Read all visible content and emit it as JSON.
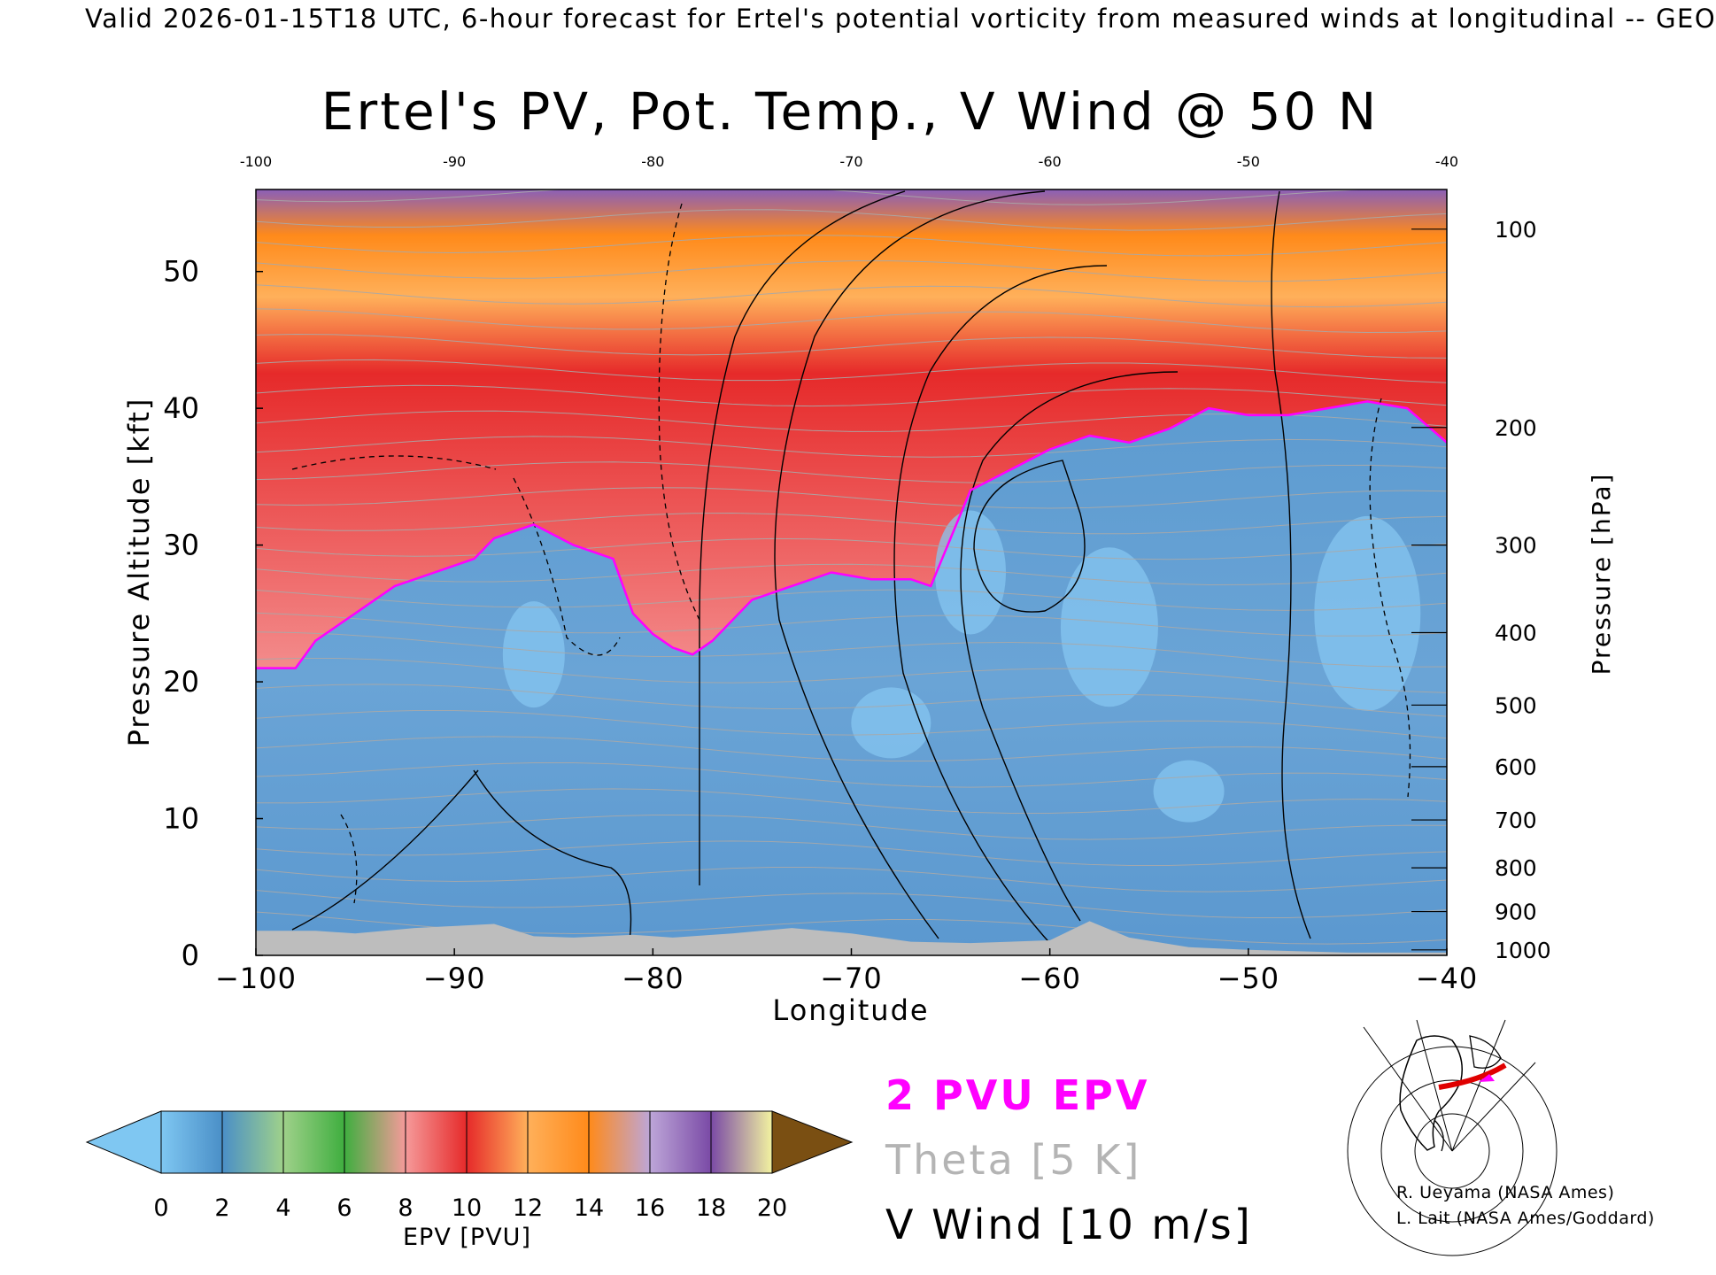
{
  "header": {
    "valid_line": "Valid 2026-01-15T18 UTC, 6-hour forecast for Ertel's potential vorticity from measured winds at longitudinal -- GEO"
  },
  "chart_data": {
    "type": "heatmap",
    "title": "Ertel's PV, Pot. Temp., V Wind @ 50 N",
    "xlabel": "Longitude",
    "ylabel_left": "Pressure Altitude [kft]",
    "ylabel_right": "Pressure [hPa]",
    "xlim": [
      -100,
      -40
    ],
    "ylim": [
      0,
      56
    ],
    "x_ticks": [
      -100,
      -90,
      -80,
      -70,
      -60,
      -50,
      -40
    ],
    "x_tick_labels": [
      "−100",
      "−90",
      "−80",
      "−70",
      "−60",
      "−50",
      "−40"
    ],
    "top_x_tick_labels": [
      "-100",
      "-90",
      "-80",
      "-70",
      "-60",
      "-50",
      "-40"
    ],
    "y_ticks_left": [
      0,
      10,
      20,
      30,
      40,
      50
    ],
    "y_ticks_right": [
      {
        "label": "100",
        "kft": 53.1
      },
      {
        "label": "200",
        "kft": 38.6
      },
      {
        "label": "300",
        "kft": 30.0
      },
      {
        "label": "400",
        "kft": 23.6
      },
      {
        "label": "500",
        "kft": 18.3
      },
      {
        "label": "600",
        "kft": 13.8
      },
      {
        "label": "700",
        "kft": 9.9
      },
      {
        "label": "800",
        "kft": 6.4
      },
      {
        "label": "900",
        "kft": 3.2
      },
      {
        "label": "1000",
        "kft": 0.4
      }
    ],
    "tropopause_kft": [
      [
        -100,
        21
      ],
      [
        -98,
        21
      ],
      [
        -97,
        23
      ],
      [
        -95,
        25
      ],
      [
        -93,
        27
      ],
      [
        -91,
        28
      ],
      [
        -89,
        29
      ],
      [
        -88,
        30.5
      ],
      [
        -86,
        31.5
      ],
      [
        -84,
        30
      ],
      [
        -82,
        29
      ],
      [
        -81,
        25
      ],
      [
        -80,
        23.5
      ],
      [
        -79,
        22.5
      ],
      [
        -78,
        22
      ],
      [
        -77,
        23
      ],
      [
        -75,
        26
      ],
      [
        -73,
        27
      ],
      [
        -71,
        28
      ],
      [
        -69,
        27.5
      ],
      [
        -67,
        27.5
      ],
      [
        -66,
        27
      ],
      [
        -65,
        30.5
      ],
      [
        -64,
        34
      ],
      [
        -62,
        35.5
      ],
      [
        -60,
        37
      ],
      [
        -58,
        38
      ],
      [
        -56,
        37.5
      ],
      [
        -54,
        38.5
      ],
      [
        -52,
        40
      ],
      [
        -50,
        39.5
      ],
      [
        -48,
        39.5
      ],
      [
        -46,
        40
      ],
      [
        -44,
        40.5
      ],
      [
        -42,
        40
      ],
      [
        -40,
        37.5
      ]
    ],
    "colorbar": {
      "label": "EPV [PVU]",
      "ticks": [
        "0",
        "2",
        "4",
        "6",
        "8",
        "10",
        "12",
        "14",
        "16",
        "18",
        "20"
      ],
      "colors": [
        "#7fc7f2",
        "#4a8fc7",
        "#9fd18a",
        "#3fae3f",
        "#f59a9a",
        "#e62a2a",
        "#ffb05a",
        "#ff8a1a",
        "#bda6d8",
        "#7a4aa6",
        "#f2f2a0",
        "#7a4f12"
      ]
    },
    "legend": {
      "pv": "2 PVU EPV",
      "theta": "Theta [5 K]",
      "vwind": "V Wind [10 m/s]"
    }
  },
  "credits": {
    "line1": "R. Ueyama (NASA Ames)",
    "line2": "L. Lait (NASA Ames/Goddard)"
  }
}
